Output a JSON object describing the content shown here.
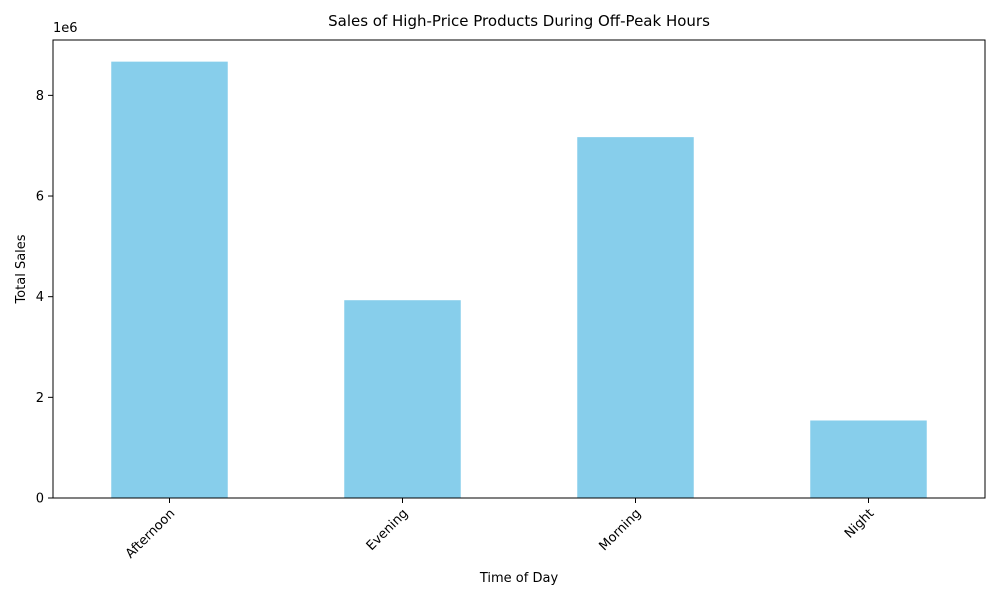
{
  "chart_data": {
    "type": "bar",
    "title": "Sales of High-Price Products During Off-Peak Hours",
    "xlabel": "Time of Day",
    "ylabel": "Total Sales",
    "categories": [
      "Afternoon",
      "Evening",
      "Morning",
      "Night"
    ],
    "values": [
      8670000,
      3930000,
      7170000,
      1540000
    ],
    "ylim": [
      0,
      9100000
    ],
    "yticks": [
      0,
      2000000,
      4000000,
      6000000,
      8000000
    ],
    "ytick_labels": [
      "0",
      "2",
      "4",
      "6",
      "8"
    ],
    "offset_label": "1e6",
    "bar_color": "#87ceeb",
    "grid": false,
    "x_tick_rotation": "45"
  }
}
